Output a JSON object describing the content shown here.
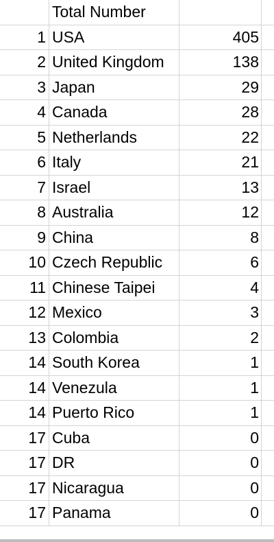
{
  "sheet": {
    "header": {
      "title": "Total Number"
    },
    "rows": [
      {
        "rank": "1",
        "country": "USA",
        "value": "405"
      },
      {
        "rank": "2",
        "country": "United Kingdom",
        "value": "138"
      },
      {
        "rank": "3",
        "country": "Japan",
        "value": "29"
      },
      {
        "rank": "4",
        "country": "Canada",
        "value": "28"
      },
      {
        "rank": "5",
        "country": "Netherlands",
        "value": "22"
      },
      {
        "rank": "6",
        "country": "Italy",
        "value": "21"
      },
      {
        "rank": "7",
        "country": "Israel",
        "value": "13"
      },
      {
        "rank": "8",
        "country": "Australia",
        "value": "12"
      },
      {
        "rank": "9",
        "country": "China",
        "value": "8"
      },
      {
        "rank": "10",
        "country": "Czech Republic",
        "value": "6"
      },
      {
        "rank": "11",
        "country": "Chinese Taipei",
        "value": "4"
      },
      {
        "rank": "12",
        "country": "Mexico",
        "value": "3"
      },
      {
        "rank": "13",
        "country": "Colombia",
        "value": "2"
      },
      {
        "rank": "14",
        "country": "South Korea",
        "value": "1"
      },
      {
        "rank": "14",
        "country": "Venezula",
        "value": "1"
      },
      {
        "rank": "14",
        "country": "Puerto Rico",
        "value": "1"
      },
      {
        "rank": "17",
        "country": "Cuba",
        "value": "0"
      },
      {
        "rank": "17",
        "country": "DR",
        "value": "0"
      },
      {
        "rank": "17",
        "country": "Nicaragua",
        "value": "0"
      },
      {
        "rank": "17",
        "country": "Panama",
        "value": "0"
      }
    ]
  }
}
